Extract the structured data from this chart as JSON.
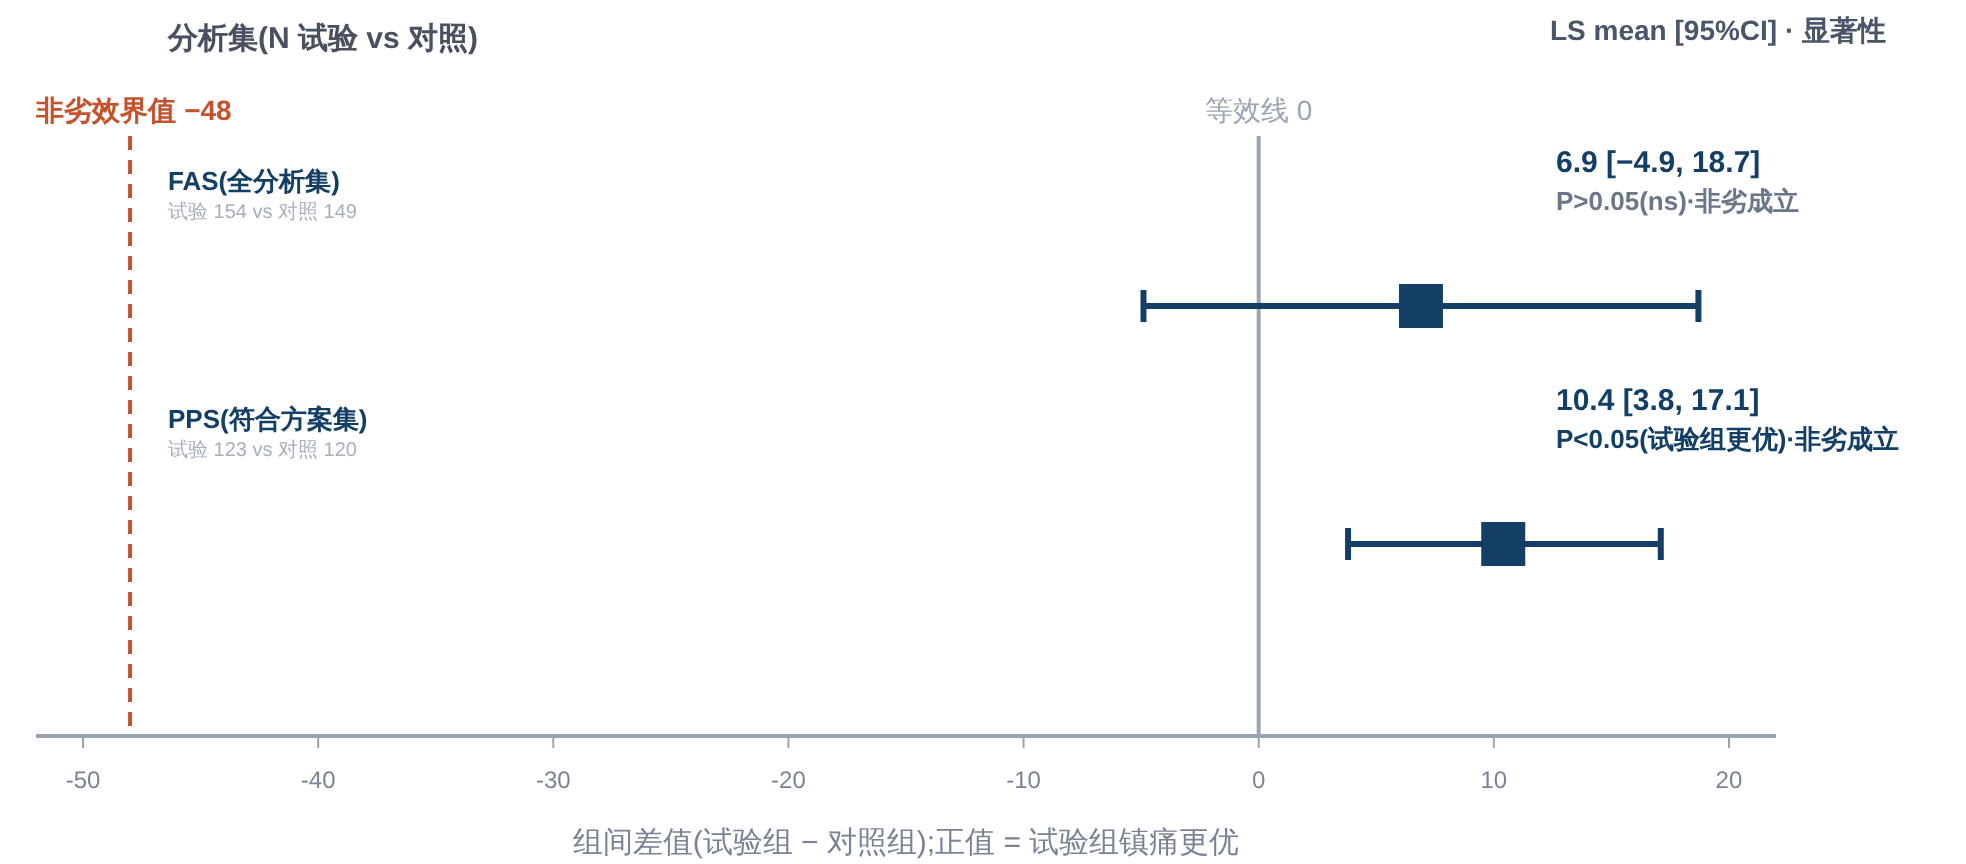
{
  "chart_data": {
    "type": "scatter",
    "orientation": "horizontal",
    "title": "分析集(N 试验 vs 对照)",
    "xlabel": "组间差值(试验组 − 对照组);正值 = 试验组镇痛更优",
    "categories": [
      "FAS(全分析集)",
      "PPS(符合方案集)"
    ],
    "values": [
      6.9,
      10.4
    ],
    "errors": [
      [
        -4.9,
        18.7
      ],
      [
        3.8,
        17.1
      ]
    ],
    "color": "#133f66",
    "marker": "square",
    "xlim": [
      -52,
      22
    ],
    "xticks": [
      -50,
      -40,
      -30,
      -20,
      -10,
      0,
      10,
      20
    ],
    "ref_lines": [
      {
        "axis": "x",
        "value": 0,
        "label": "等效线 0",
        "color": "#9aa3b3",
        "line_style": "solid"
      },
      {
        "axis": "x",
        "value": -48,
        "label": "非劣效界值 −48",
        "color": "#c4532c",
        "line_style": "dashed"
      }
    ],
    "annotations": [
      "LS mean [95%CI] · 显著性",
      "试验 154 vs 对照 149",
      "试验 123 vs 对照 120",
      "6.9 [−4.9, 18.7]",
      "10.4 [3.8, 17.1]",
      "P>0.05(ns)·非劣成立",
      "P<0.05(试验组更优)·非劣成立"
    ],
    "grid": false
  }
}
